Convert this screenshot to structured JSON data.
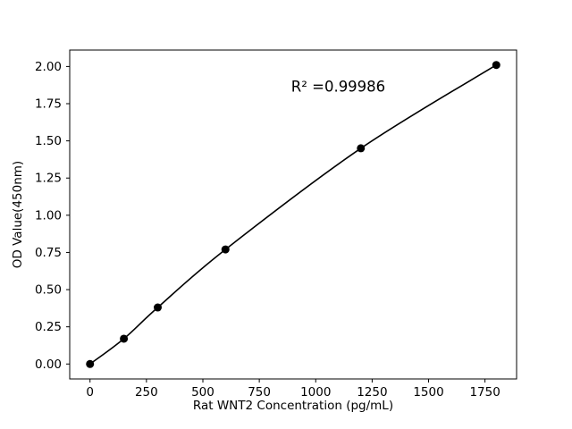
{
  "chart_data": {
    "type": "scatter",
    "title": "",
    "xlabel": "Rat WNT2 Concentration (pg/mL)",
    "ylabel": "OD Value(450nm)",
    "x": [
      0,
      150,
      300,
      600,
      1200,
      1800
    ],
    "y": [
      0.0,
      0.17,
      0.38,
      0.77,
      1.45,
      2.01
    ],
    "xlim": [
      -90,
      1890
    ],
    "ylim": [
      -0.1005,
      2.1105
    ],
    "xticks": [
      0,
      250,
      500,
      750,
      1000,
      1250,
      1500,
      1750
    ],
    "xtick_labels": [
      "0",
      "250",
      "500",
      "750",
      "1000",
      "1250",
      "1500",
      "1750"
    ],
    "yticks": [
      0.0,
      0.25,
      0.5,
      0.75,
      1.0,
      1.25,
      1.5,
      1.75,
      2.0
    ],
    "ytick_labels": [
      "0.00",
      "0.25",
      "0.50",
      "0.75",
      "1.00",
      "1.25",
      "1.50",
      "1.75",
      "2.00"
    ],
    "annotation": {
      "text": "R² =0.99986",
      "x": 1100,
      "y": 1.83
    },
    "line_color": "#000000",
    "marker_color": "#000000",
    "background_color": "#ffffff",
    "grid": false,
    "legend": null,
    "curve": "smooth-fit-through-points"
  }
}
